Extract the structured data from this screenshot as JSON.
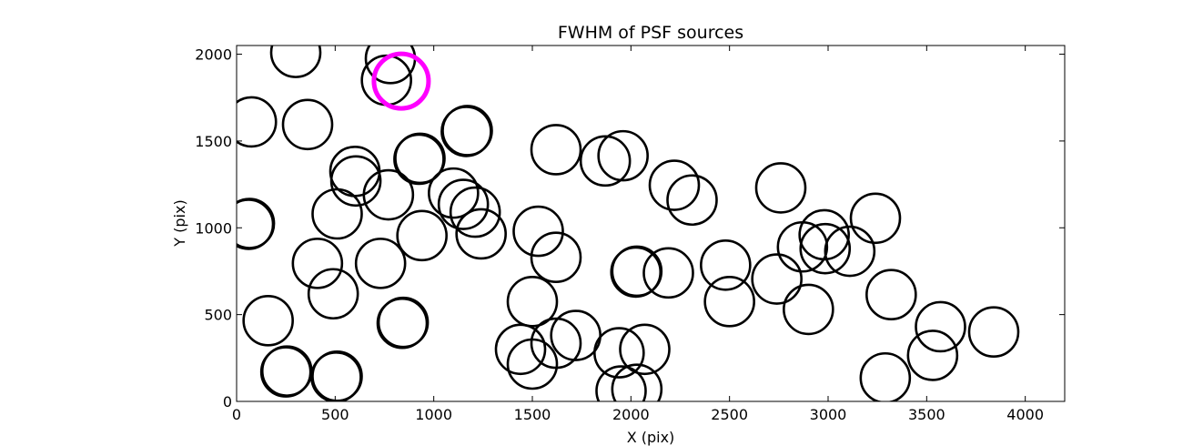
{
  "chart_data": {
    "type": "scatter",
    "title": "FWHM of PSF sources",
    "xlabel": "X (pix)",
    "ylabel": "Y (pix)",
    "xlim": [
      0,
      4200
    ],
    "ylim": [
      0,
      2050
    ],
    "xticks": [
      0,
      500,
      1000,
      1500,
      2000,
      2500,
      3000,
      3500,
      4000
    ],
    "yticks": [
      0,
      500,
      1000,
      1500,
      2000
    ],
    "grid": false,
    "marker": "open circle",
    "series": [
      {
        "color": "#000000",
        "points": [
          {
            "x": 300,
            "y": 2010
          },
          {
            "x": 780,
            "y": 1975
          },
          {
            "x": 760,
            "y": 1850
          },
          {
            "x": 75,
            "y": 1610
          },
          {
            "x": 360,
            "y": 1595
          },
          {
            "x": 1170,
            "y": 1560
          },
          {
            "x": 1165,
            "y": 1555
          },
          {
            "x": 1620,
            "y": 1450
          },
          {
            "x": 1870,
            "y": 1385
          },
          {
            "x": 1960,
            "y": 1415
          },
          {
            "x": 930,
            "y": 1400
          },
          {
            "x": 925,
            "y": 1395
          },
          {
            "x": 600,
            "y": 1325
          },
          {
            "x": 605,
            "y": 1270
          },
          {
            "x": 1100,
            "y": 1200
          },
          {
            "x": 770,
            "y": 1190
          },
          {
            "x": 1150,
            "y": 1135
          },
          {
            "x": 1210,
            "y": 1090
          },
          {
            "x": 2220,
            "y": 1245
          },
          {
            "x": 2310,
            "y": 1160
          },
          {
            "x": 2760,
            "y": 1230
          },
          {
            "x": 3240,
            "y": 1055
          },
          {
            "x": 65,
            "y": 1025
          },
          {
            "x": 60,
            "y": 1020
          },
          {
            "x": 510,
            "y": 1080
          },
          {
            "x": 1240,
            "y": 965
          },
          {
            "x": 1530,
            "y": 980
          },
          {
            "x": 940,
            "y": 955
          },
          {
            "x": 1620,
            "y": 830
          },
          {
            "x": 2980,
            "y": 960
          },
          {
            "x": 2870,
            "y": 890
          },
          {
            "x": 2985,
            "y": 880
          },
          {
            "x": 3110,
            "y": 865
          },
          {
            "x": 410,
            "y": 795
          },
          {
            "x": 730,
            "y": 795
          },
          {
            "x": 2030,
            "y": 750
          },
          {
            "x": 2025,
            "y": 745
          },
          {
            "x": 2190,
            "y": 740
          },
          {
            "x": 2480,
            "y": 785
          },
          {
            "x": 2740,
            "y": 705
          },
          {
            "x": 3320,
            "y": 615
          },
          {
            "x": 490,
            "y": 620
          },
          {
            "x": 1500,
            "y": 575
          },
          {
            "x": 2500,
            "y": 575
          },
          {
            "x": 2900,
            "y": 530
          },
          {
            "x": 160,
            "y": 465
          },
          {
            "x": 845,
            "y": 455
          },
          {
            "x": 840,
            "y": 450
          },
          {
            "x": 3570,
            "y": 430
          },
          {
            "x": 3840,
            "y": 400
          },
          {
            "x": 1720,
            "y": 380
          },
          {
            "x": 1620,
            "y": 335
          },
          {
            "x": 1440,
            "y": 300
          },
          {
            "x": 2070,
            "y": 300
          },
          {
            "x": 1940,
            "y": 280
          },
          {
            "x": 3530,
            "y": 265
          },
          {
            "x": 1500,
            "y": 215
          },
          {
            "x": 255,
            "y": 175
          },
          {
            "x": 250,
            "y": 170
          },
          {
            "x": 510,
            "y": 145
          },
          {
            "x": 505,
            "y": 140
          },
          {
            "x": 3290,
            "y": 135
          },
          {
            "x": 1950,
            "y": 60
          },
          {
            "x": 2030,
            "y": 70
          }
        ]
      },
      {
        "color": "#ff00ff",
        "points": [
          {
            "x": 835,
            "y": 1845
          }
        ]
      }
    ]
  }
}
